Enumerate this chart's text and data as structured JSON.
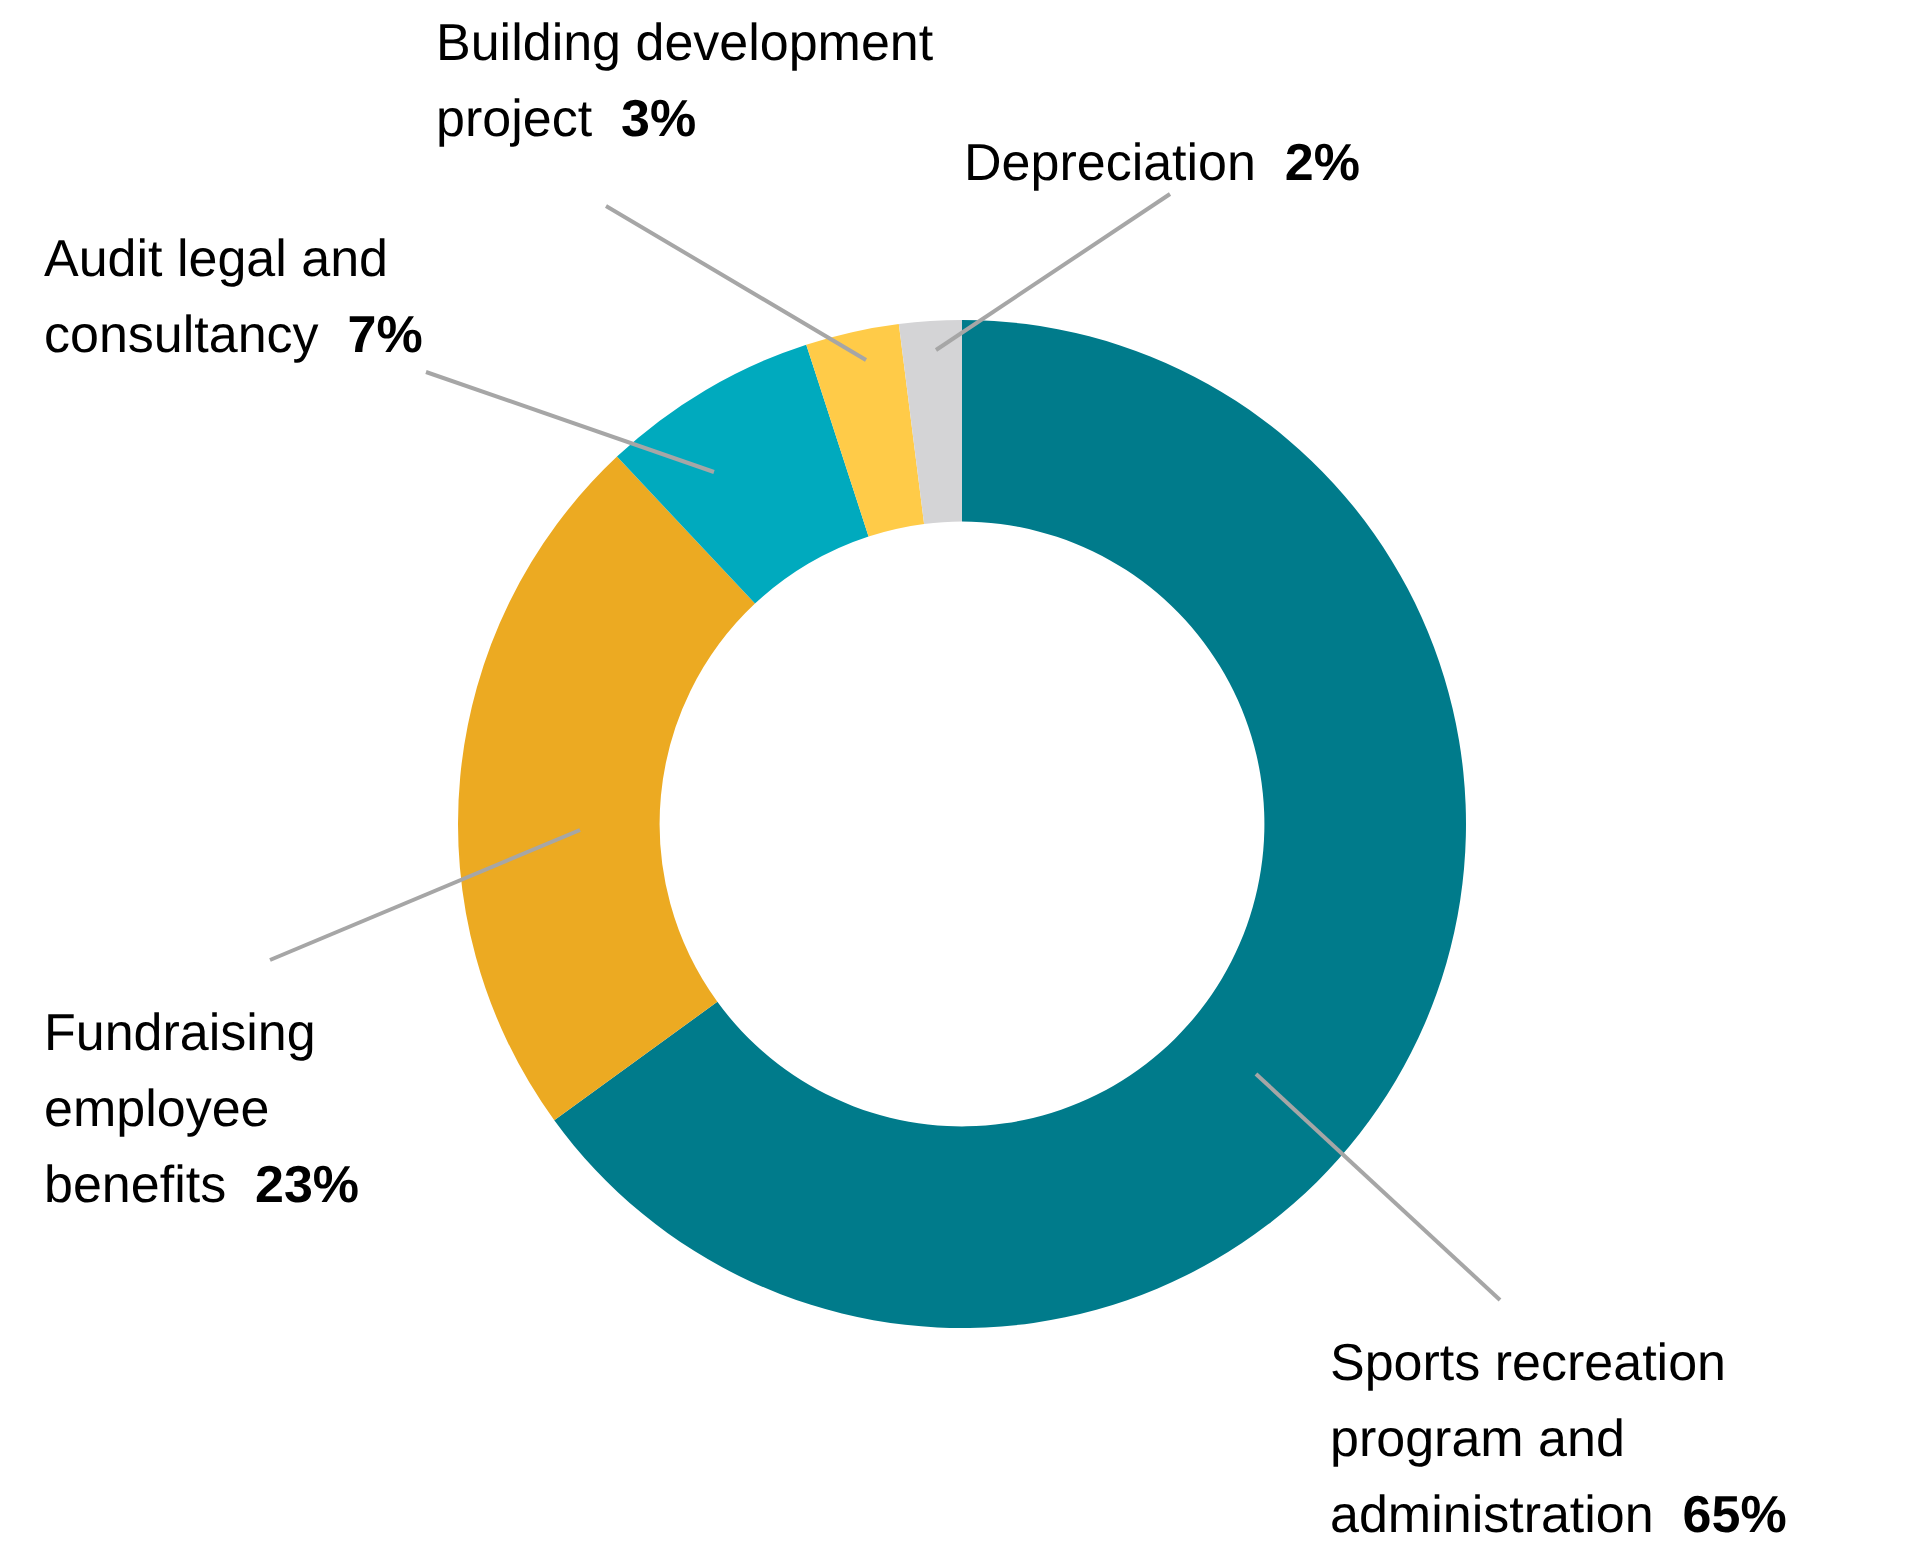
{
  "chart_data": {
    "type": "donut",
    "categories": [
      "Sports recreation program and administration",
      "Fundraising employee benefits",
      "Audit legal and consultancy",
      "Building development project",
      "Depreciation"
    ],
    "values": [
      65,
      23,
      7,
      3,
      2
    ],
    "colors": [
      "#007b8b",
      "#ecaa22",
      "#00aabe",
      "#ffcb48",
      "#d4d4d6"
    ],
    "value_labels": [
      "65%",
      "23%",
      "7%",
      "3%",
      "2%"
    ],
    "legend": false
  }
}
